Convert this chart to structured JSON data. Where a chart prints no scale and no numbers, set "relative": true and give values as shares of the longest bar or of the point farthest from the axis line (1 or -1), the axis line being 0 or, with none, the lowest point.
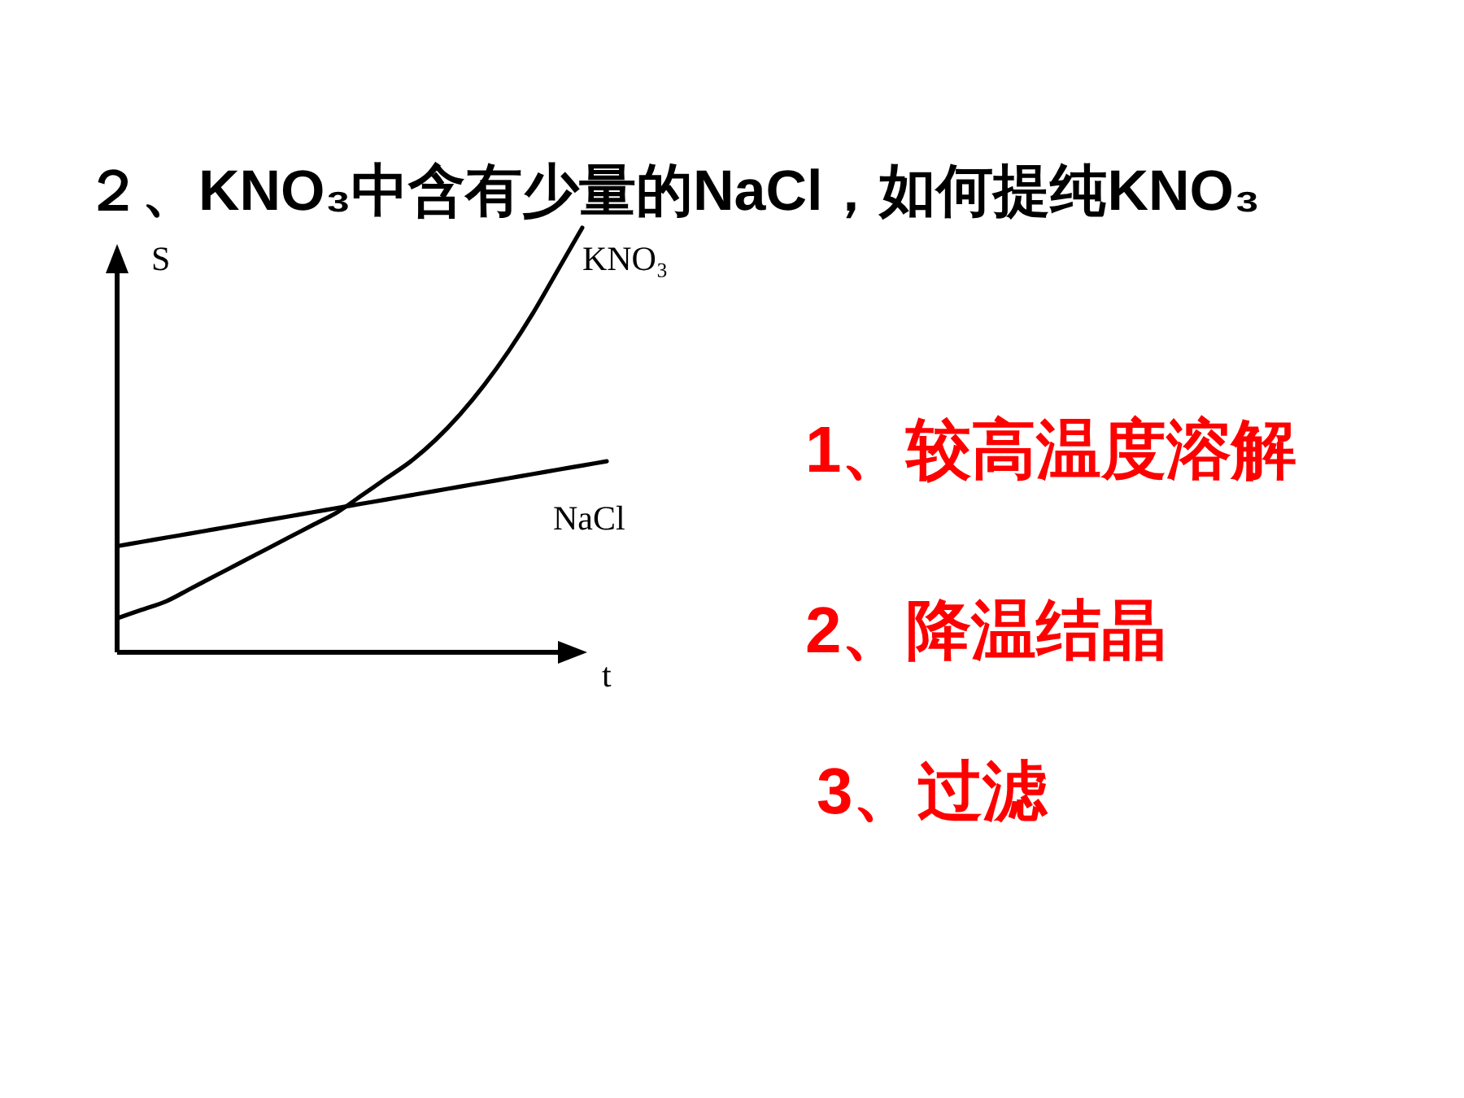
{
  "chart_data": {
    "type": "line",
    "title": "２、KNO₃中含有少量的NaCl，如何提纯KNO₃",
    "xlabel": "t",
    "ylabel": "S",
    "relative": true,
    "legend": false,
    "marker": "none",
    "line_style": "solid",
    "categories": [
      null,
      null,
      null,
      null,
      null,
      null,
      null,
      null,
      null,
      null,
      null,
      null,
      null,
      null,
      null,
      null,
      null,
      null,
      null,
      null,
      null
    ],
    "series": [
      {
        "name": "KNO₃",
        "color": "#000000",
        "values": [
          0.08,
          0.1,
          0.12,
          0.15,
          0.18,
          0.21,
          0.24,
          0.27,
          0.3,
          0.33,
          0.37,
          0.41,
          0.45,
          0.5,
          0.56,
          0.63,
          0.71,
          0.8,
          0.9,
          1,
          null
        ]
      },
      {
        "name": "NaCl",
        "color": "#000000",
        "values": [
          0.25,
          0.26,
          0.27,
          0.28,
          0.29,
          0.3,
          0.31,
          0.32,
          0.33,
          0.34,
          0.35,
          0.36,
          0.37,
          0.38,
          0.39,
          0.4,
          0.41,
          0.42,
          0.43,
          0.44,
          0.45
        ]
      }
    ],
    "annotations": [
      "1、较高温度溶解",
      "2、降温结晶",
      "3、过滤"
    ]
  }
}
